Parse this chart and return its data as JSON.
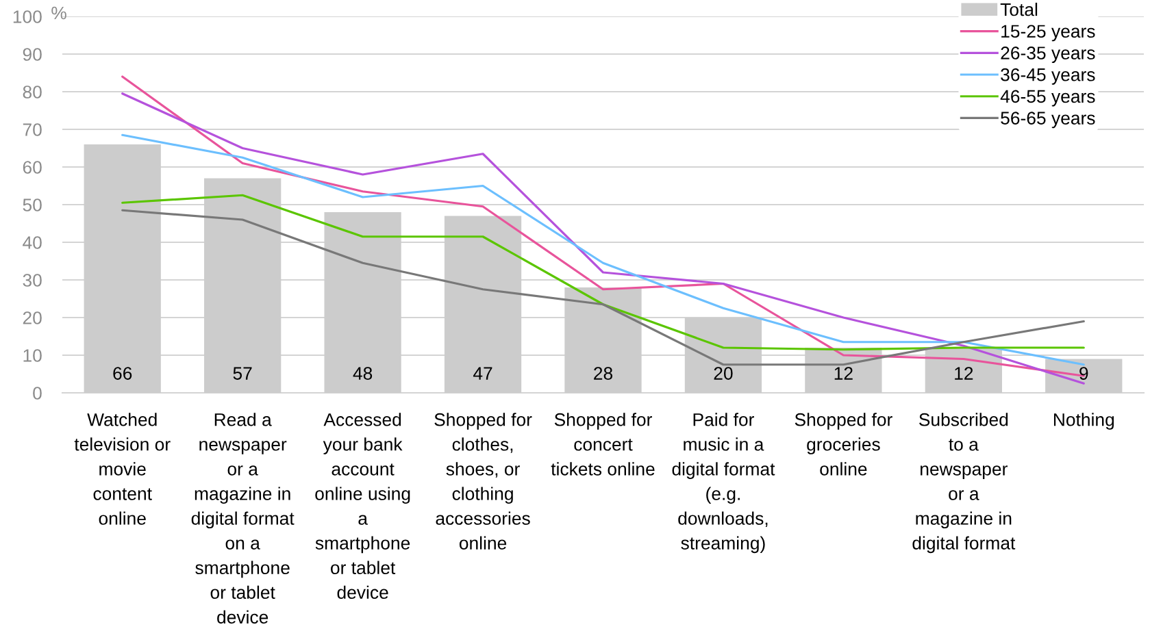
{
  "chart_data": {
    "type": "bar",
    "ylabel": "%",
    "categories": [
      "Watched\ntelevision or\nmovie\ncontent\nonline",
      "Read a\nnewspaper\nor a\nmagazine in\ndigital format\non a\nsmartphone\nor tablet\ndevice",
      "Accessed\nyour bank\naccount\nonline using\na\nsmartphone\nor tablet\ndevice",
      "Shopped for\nclothes,\nshoes, or\nclothing\naccessories\nonline",
      "Shopped for\nconcert\ntickets online",
      "Paid for\nmusic in a\ndigital format\n(e.g.\ndownloads,\nstreaming)",
      "Shopped for\ngroceries\nonline",
      "Subscribed\nto a\nnewspaper\nor a\nmagazine in\ndigital format",
      "Nothing"
    ],
    "ylim": [
      0,
      100
    ],
    "yticks": [
      0,
      10,
      20,
      30,
      40,
      50,
      60,
      70,
      80,
      90,
      100
    ],
    "grid": "y",
    "legend": "top right",
    "series": [
      {
        "name": "Total",
        "color": "#cccccc",
        "values": [
          66,
          57,
          48,
          47,
          28,
          20,
          12,
          12,
          9
        ],
        "data_labels": true
      },
      {
        "name": "15-25 years",
        "type": "line",
        "color": "#e8549b",
        "values": [
          84,
          61,
          53.5,
          49.5,
          27.5,
          29,
          10,
          9,
          4.5
        ]
      },
      {
        "name": "26-35 years",
        "type": "line",
        "color": "#b552dc",
        "values": [
          79.5,
          65,
          58,
          63.5,
          32,
          29,
          20,
          12.5,
          2.5
        ]
      },
      {
        "name": "36-45 years",
        "type": "line",
        "color": "#6cbffe",
        "values": [
          68.5,
          62.5,
          52,
          55,
          34.5,
          22.5,
          13.5,
          13.5,
          7.5
        ]
      },
      {
        "name": "46-55 years",
        "type": "line",
        "color": "#5bc500",
        "values": [
          50.5,
          52.5,
          41.5,
          41.5,
          23.5,
          12,
          11.5,
          12,
          12
        ]
      },
      {
        "name": "56-65 years",
        "type": "line",
        "color": "#787878",
        "values": [
          48.5,
          46,
          34.5,
          27.5,
          23.5,
          7.5,
          7.5,
          13.5,
          19
        ]
      }
    ]
  }
}
